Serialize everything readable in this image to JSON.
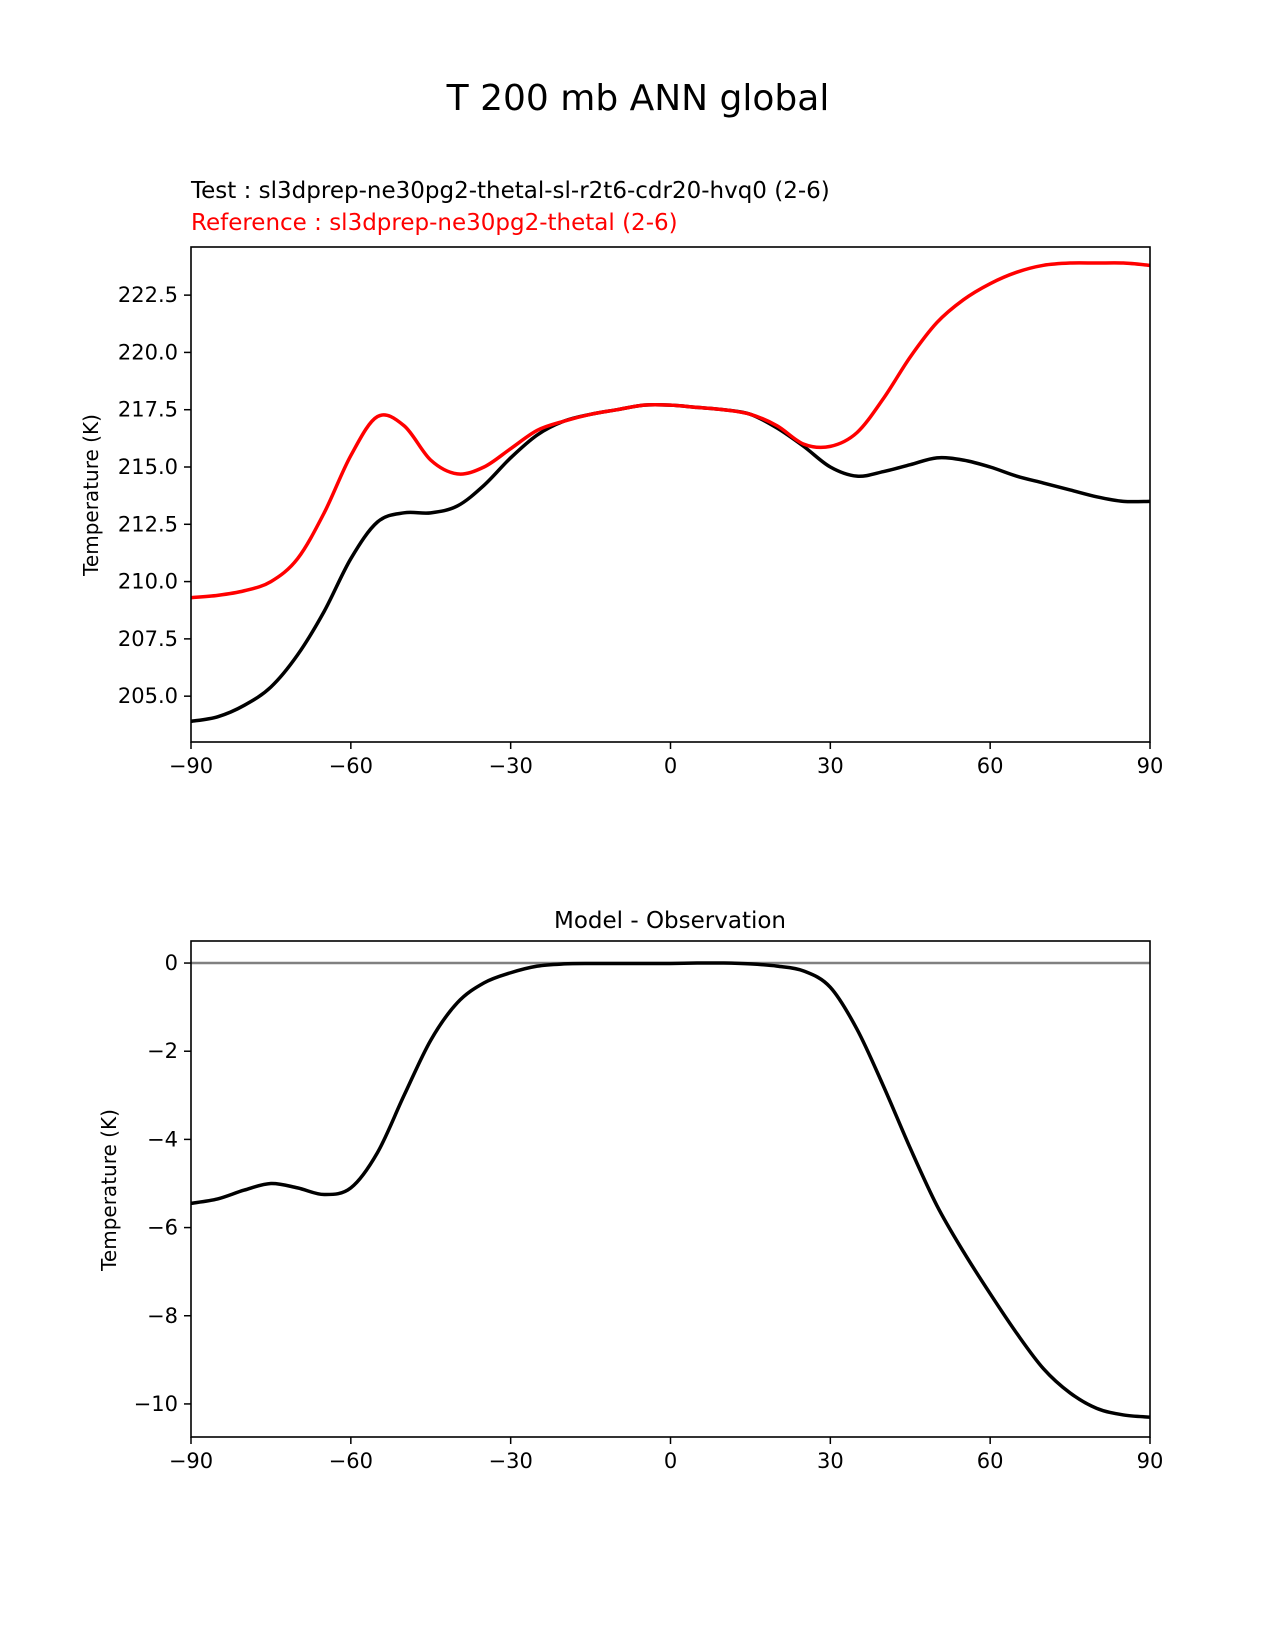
{
  "figure_title": "T 200 mb ANN global",
  "chart_data": [
    {
      "type": "line",
      "title": "",
      "test_label": "Test : sl3dprep-ne30pg2-thetal-sl-r2t6-cdr20-hvq0 (2-6)",
      "reference_label": "Reference : sl3dprep-ne30pg2-thetal (2-6)",
      "xlabel": "",
      "ylabel": "Temperature (K)",
      "xlim": [
        -90,
        90
      ],
      "ylim": [
        203.0,
        224.6
      ],
      "grid": false,
      "xticks": [
        -90,
        -60,
        -30,
        0,
        30,
        60,
        90
      ],
      "xtick_labels": [
        "−90",
        "−60",
        "−30",
        "0",
        "30",
        "60",
        "90"
      ],
      "yticks": [
        205.0,
        207.5,
        210.0,
        212.5,
        215.0,
        217.5,
        220.0,
        222.5
      ],
      "ytick_labels": [
        "205.0",
        "207.5",
        "210.0",
        "212.5",
        "215.0",
        "217.5",
        "220.0",
        "222.5"
      ],
      "x": [
        -90,
        -85,
        -80,
        -75,
        -70,
        -65,
        -60,
        -55,
        -50,
        -45,
        -40,
        -35,
        -30,
        -25,
        -20,
        -15,
        -10,
        -5,
        0,
        5,
        10,
        15,
        20,
        25,
        30,
        35,
        40,
        45,
        50,
        55,
        60,
        65,
        70,
        75,
        80,
        85,
        90
      ],
      "series": [
        {
          "name": "Test",
          "color": "#000000",
          "values": [
            203.9,
            204.1,
            204.6,
            205.4,
            206.8,
            208.7,
            211.0,
            212.6,
            213.0,
            213.0,
            213.3,
            214.2,
            215.4,
            216.4,
            217.0,
            217.3,
            217.5,
            217.7,
            217.7,
            217.6,
            217.5,
            217.3,
            216.7,
            215.9,
            215.0,
            214.6,
            214.8,
            215.1,
            215.4,
            215.3,
            215.0,
            214.6,
            214.3,
            214.0,
            213.7,
            213.5,
            213.5
          ]
        },
        {
          "name": "Reference",
          "color": "#ff0000",
          "values": [
            209.3,
            209.4,
            209.6,
            210.0,
            211.0,
            213.0,
            215.5,
            217.2,
            216.8,
            215.3,
            214.7,
            215.0,
            215.8,
            216.6,
            217.0,
            217.3,
            217.5,
            217.7,
            217.7,
            217.6,
            217.5,
            217.3,
            216.8,
            216.0,
            215.9,
            216.5,
            218.0,
            219.8,
            221.3,
            222.3,
            223.0,
            223.5,
            223.8,
            223.9,
            223.9,
            223.9,
            223.8
          ]
        }
      ]
    },
    {
      "type": "line",
      "title": "Model - Observation",
      "xlabel": "",
      "ylabel": "Temperature (K)",
      "xlim": [
        -90,
        90
      ],
      "ylim": [
        -10.75,
        0.5
      ],
      "grid": false,
      "zero_line": 0,
      "zero_line_color": "#808080",
      "xticks": [
        -90,
        -60,
        -30,
        0,
        30,
        60,
        90
      ],
      "xtick_labels": [
        "−90",
        "−60",
        "−30",
        "0",
        "30",
        "60",
        "90"
      ],
      "yticks": [
        0,
        -2,
        -4,
        -6,
        -8,
        -10
      ],
      "ytick_labels": [
        "0",
        "−2",
        "−4",
        "−6",
        "−8",
        "−10"
      ],
      "x": [
        -90,
        -85,
        -80,
        -75,
        -70,
        -65,
        -60,
        -55,
        -50,
        -45,
        -40,
        -35,
        -30,
        -25,
        -20,
        -15,
        -10,
        -5,
        0,
        5,
        10,
        15,
        20,
        25,
        30,
        35,
        40,
        45,
        50,
        55,
        60,
        65,
        70,
        75,
        80,
        85,
        90
      ],
      "series": [
        {
          "name": "Model - Observation",
          "color": "#000000",
          "values": [
            -5.45,
            -5.35,
            -5.15,
            -5.0,
            -5.1,
            -5.25,
            -5.1,
            -4.3,
            -3.0,
            -1.75,
            -0.9,
            -0.45,
            -0.22,
            -0.07,
            -0.02,
            -0.01,
            -0.01,
            -0.01,
            -0.01,
            0.0,
            0.0,
            -0.02,
            -0.07,
            -0.18,
            -0.55,
            -1.5,
            -2.8,
            -4.2,
            -5.5,
            -6.55,
            -7.5,
            -8.4,
            -9.2,
            -9.75,
            -10.1,
            -10.25,
            -10.3
          ]
        }
      ]
    }
  ]
}
